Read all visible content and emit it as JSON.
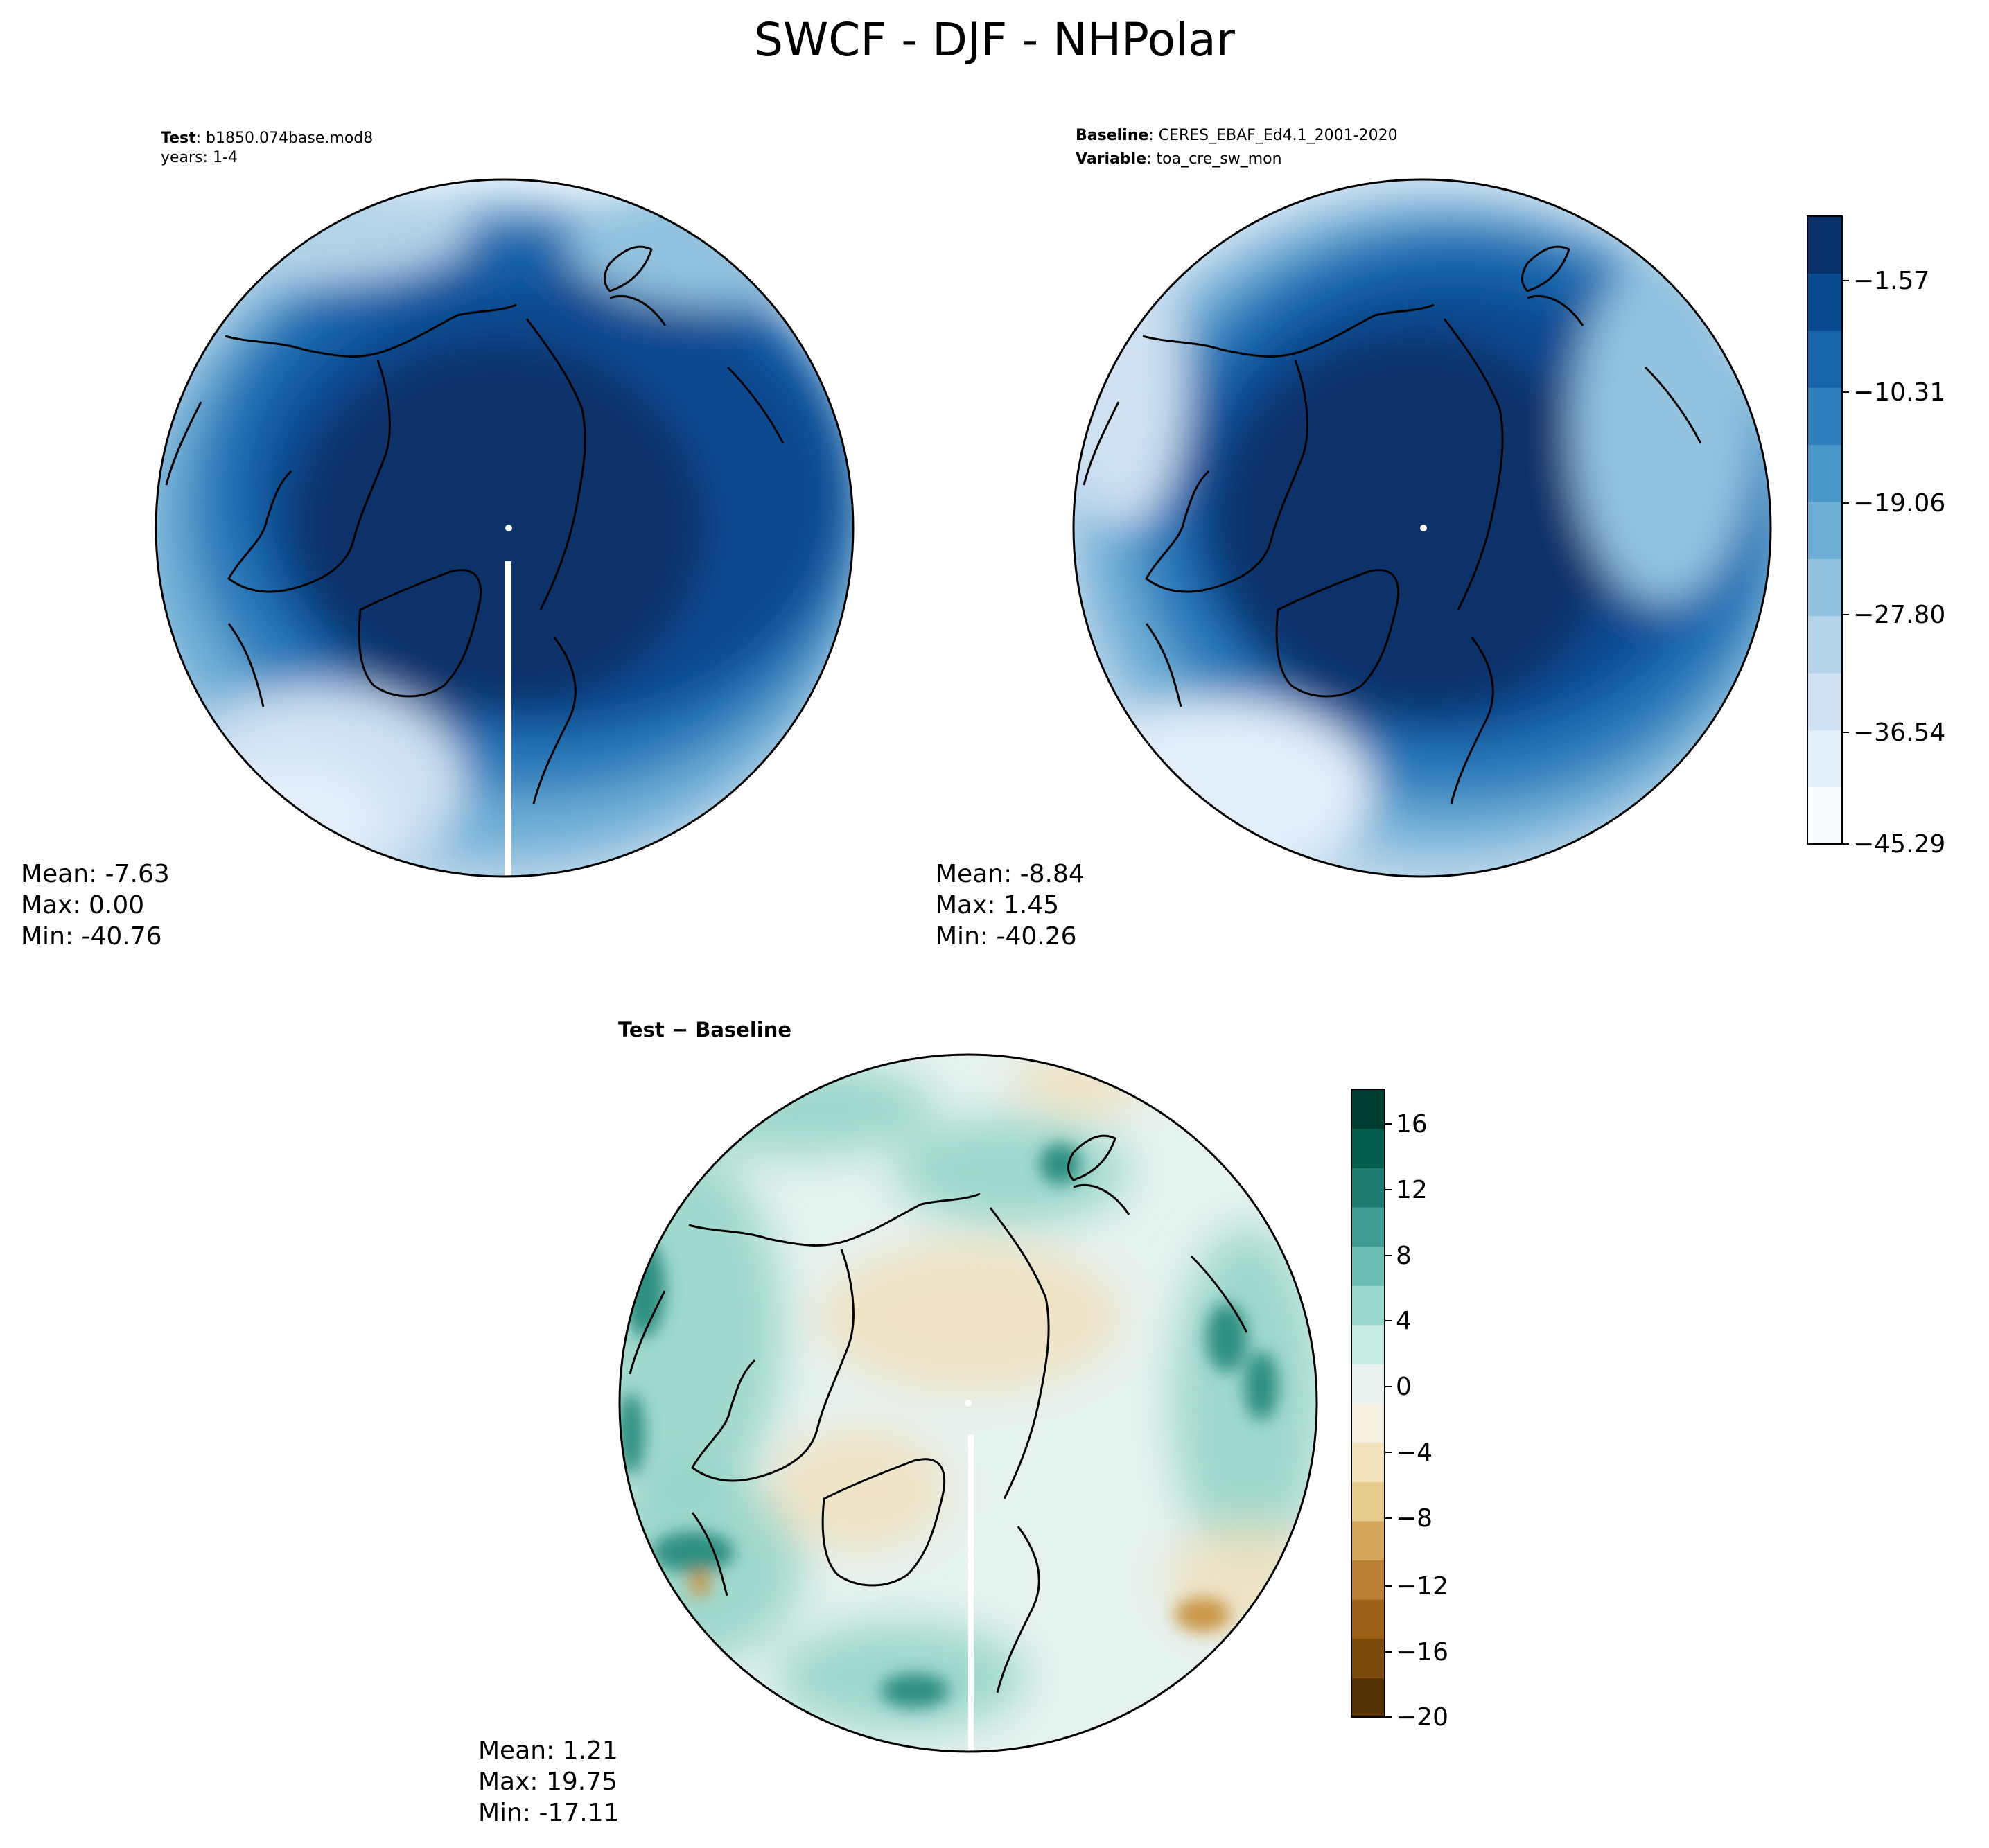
{
  "figure": {
    "title": "SWCF - DJF - NHPolar"
  },
  "panels": {
    "test": {
      "label_bold": "Test",
      "label_rest": ": b1850.074base.mod8",
      "line2": "years: 1-4",
      "stats": {
        "mean": "Mean: -7.63",
        "max": "Max:  0.00",
        "min": "Min: -40.76"
      }
    },
    "baseline": {
      "label_bold": "Baseline",
      "label_rest": ": CERES_EBAF_Ed4.1_2001-2020",
      "line2_bold": "Variable",
      "line2_rest": ": toa_cre_sw_mon",
      "stats": {
        "mean": "Mean: -8.84",
        "max": "Max:  1.45",
        "min": "Min: -40.26"
      }
    },
    "diff": {
      "label": "Test − Baseline",
      "stats": {
        "mean": "Mean:  1.21",
        "max": "Max: 19.75",
        "min": "Min: -17.11"
      }
    }
  },
  "colorbars": {
    "main": {
      "tick_labels": [
        "−1.57",
        "−10.31",
        "−19.06",
        "−27.80",
        "−36.54",
        "−45.29"
      ],
      "colors": [
        "#f7fbff",
        "#e3eef9",
        "#cfe1f2",
        "#b5d4e9",
        "#93c3df",
        "#6daed5",
        "#4b97c9",
        "#2f7ebc",
        "#1864aa",
        "#0a4a90",
        "#08306b"
      ]
    },
    "diff": {
      "tick_labels": [
        "16",
        "12",
        "8",
        "4",
        "0",
        "−4",
        "−8",
        "−12",
        "−16",
        "−20"
      ],
      "colors": [
        "#543005",
        "#7a4a0b",
        "#9b6017",
        "#b97f32",
        "#d2a55b",
        "#e6cb8e",
        "#f2e3bc",
        "#f5f0e1",
        "#e8f3f1",
        "#c6ebe5",
        "#9bd8cd",
        "#6bbfb2",
        "#3f9c92",
        "#1d7b6f",
        "#035c4c",
        "#003c30"
      ]
    }
  },
  "map_colors": {
    "main_levels": [
      "#f7fbff",
      "#e3eef9",
      "#cfe1f2",
      "#b5d4e9",
      "#93c3df",
      "#6daed5",
      "#4b97c9",
      "#2f7ebc",
      "#1864aa",
      "#0a4a90",
      "#08306b"
    ],
    "diff_background": "#e6f2f0",
    "diff_pos": "#8ed2c4",
    "diff_strong_pos": "#2f8f80",
    "diff_neg": "#f0e2bf",
    "diff_strong_neg": "#c99647"
  }
}
